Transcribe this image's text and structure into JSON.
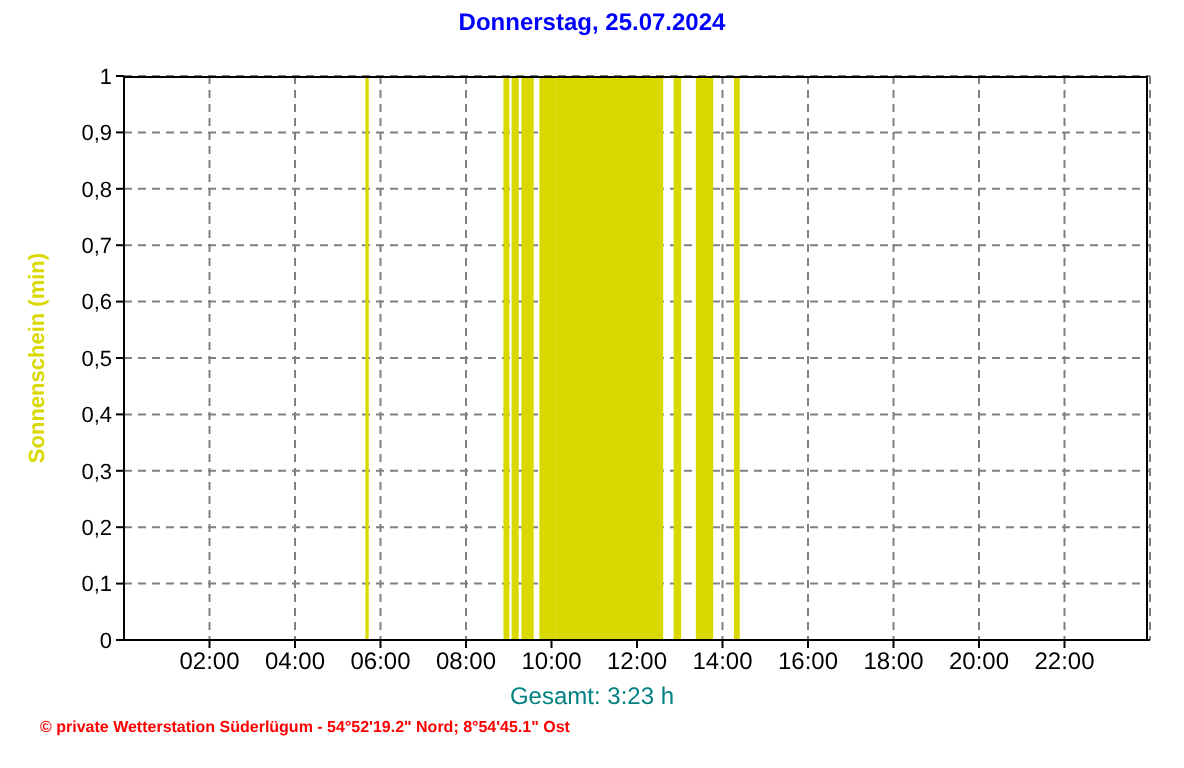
{
  "chart_data": {
    "type": "area",
    "title": "Donnerstag, 25.07.2024",
    "ylabel": "Sonnenschein  (min)",
    "annotations": [
      "Gesamt: 3:23 h",
      "© private Wetterstation Süderlügum  -  54°52'19.2\" Nord; 8°54'45.1\" Ost"
    ],
    "series": [
      {
        "color": "#d9d900",
        "x": [
          0,
          5.67,
          5.67,
          5.7,
          5.7,
          8.9,
          8.9,
          8.99,
          8.99,
          9.09,
          9.09,
          9.21,
          9.21,
          9.32,
          9.32,
          9.56,
          9.56,
          9.74,
          9.74,
          10.07,
          10.07,
          10.12,
          10.12,
          12.59,
          12.59,
          12.88,
          12.88,
          13.01,
          13.01,
          13.4,
          13.4,
          13.54,
          13.54,
          13.58,
          13.58,
          13.76,
          13.76,
          14.29,
          14.29,
          14.38,
          14.38,
          24
        ],
        "values": [
          0,
          0,
          1,
          1,
          0,
          0,
          1,
          1,
          0,
          0,
          1,
          1,
          0,
          0,
          1,
          1,
          0,
          0,
          1,
          1,
          0,
          0,
          1,
          1,
          0,
          0,
          1,
          1,
          0,
          0,
          1,
          1,
          0,
          0,
          1,
          1,
          0,
          0,
          1,
          1,
          0,
          0
        ]
      }
    ],
    "xlim": [
      0,
      24
    ],
    "xticks": [
      {
        "value": 2,
        "label": "02:00"
      },
      {
        "value": 4,
        "label": "04:00"
      },
      {
        "value": 6,
        "label": "06:00"
      },
      {
        "value": 8,
        "label": "08:00"
      },
      {
        "value": 10,
        "label": "10:00"
      },
      {
        "value": 12,
        "label": "12:00"
      },
      {
        "value": 14,
        "label": "14:00"
      },
      {
        "value": 16,
        "label": "16:00"
      },
      {
        "value": 18,
        "label": "18:00"
      },
      {
        "value": 20,
        "label": "20:00"
      },
      {
        "value": 22,
        "label": "22:00"
      }
    ],
    "ylim": [
      0,
      1
    ],
    "yticks": [
      0,
      {
        "value": 0.1,
        "label": "0,1"
      },
      {
        "value": 0.2,
        "label": "0,2"
      },
      {
        "value": 0.3,
        "label": "0,3"
      },
      {
        "value": 0.4,
        "label": "0,4"
      },
      {
        "value": 0.5,
        "label": "0,5"
      },
      {
        "value": 0.6,
        "label": "0,6"
      },
      {
        "value": 0.7,
        "label": "0,7"
      },
      {
        "value": 0.8,
        "label": "0,8"
      },
      {
        "value": 0.9,
        "label": "0,9"
      },
      1
    ],
    "grid": true,
    "legend": false
  }
}
